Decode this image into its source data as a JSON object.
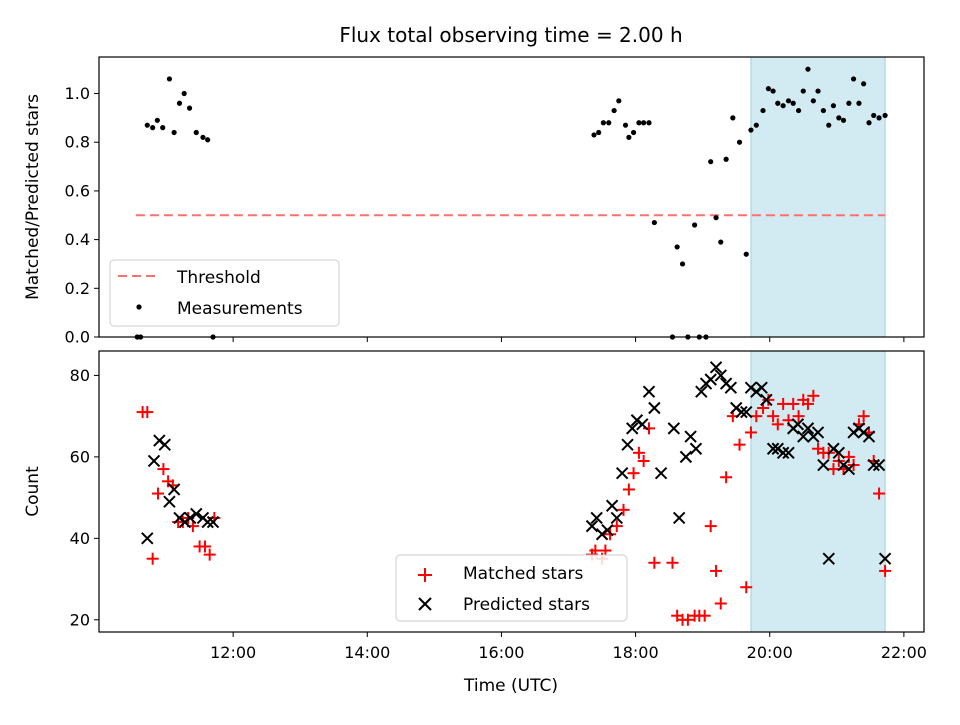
{
  "chart_data": {
    "title": "Flux total observing time = 2.00 h",
    "xlabel": "Time (UTC)",
    "x_unit": "hours UTC",
    "xlim": [
      10.0,
      22.3
    ],
    "x_ticks": [
      {
        "value": 12,
        "label": "12:00"
      },
      {
        "value": 14,
        "label": "14:00"
      },
      {
        "value": 16,
        "label": "16:00"
      },
      {
        "value": 18,
        "label": "18:00"
      },
      {
        "value": 20,
        "label": "20:00"
      },
      {
        "value": 22,
        "label": "22:00"
      }
    ],
    "highlight_span": {
      "x": [
        19.72,
        21.72
      ],
      "color": "#add8e6"
    },
    "panels": [
      {
        "type": "scatter",
        "ylabel": "Matched/Predicted stars",
        "ylim": [
          0,
          1.15
        ],
        "y_ticks": [
          0.0,
          0.2,
          0.4,
          0.6,
          0.8,
          1.0
        ],
        "legend": "lower-left",
        "threshold": {
          "name": "Threshold",
          "value": 0.5,
          "x_range": [
            10.55,
            21.72
          ],
          "color": "#ff7070"
        },
        "series": [
          {
            "name": "Measurements",
            "color": "#000000",
            "x": [
              10.57,
              10.62,
              10.72,
              10.8,
              10.87,
              10.95,
              11.05,
              11.12,
              11.2,
              11.27,
              11.35,
              11.45,
              11.55,
              11.62,
              11.7,
              17.38,
              17.45,
              17.52,
              17.6,
              17.68,
              17.75,
              17.85,
              17.9,
              17.97,
              18.05,
              18.12,
              18.2,
              18.28,
              18.55,
              18.62,
              18.7,
              18.78,
              18.88,
              18.95,
              19.05,
              19.12,
              19.2,
              19.27,
              19.35,
              19.45,
              19.55,
              19.65,
              19.72,
              19.8,
              19.9,
              19.98,
              20.05,
              20.12,
              20.2,
              20.28,
              20.35,
              20.43,
              20.5,
              20.57,
              20.65,
              20.72,
              20.8,
              20.88,
              20.95,
              21.03,
              21.1,
              21.18,
              21.25,
              21.33,
              21.4,
              21.48,
              21.55,
              21.63,
              21.72
            ],
            "y": [
              0.0,
              0.0,
              0.87,
              0.86,
              0.89,
              0.86,
              1.06,
              0.84,
              0.96,
              1.0,
              0.94,
              0.84,
              0.82,
              0.81,
              0.0,
              0.83,
              0.84,
              0.88,
              0.88,
              0.93,
              0.97,
              0.87,
              0.82,
              0.84,
              0.88,
              0.88,
              0.88,
              0.47,
              0.0,
              0.37,
              0.3,
              0.0,
              0.46,
              0.0,
              0.0,
              0.72,
              0.49,
              0.39,
              0.73,
              0.9,
              0.8,
              0.34,
              0.85,
              0.87,
              0.93,
              1.02,
              1.01,
              0.96,
              0.95,
              0.97,
              0.96,
              0.93,
              1.01,
              1.1,
              0.97,
              1.01,
              0.93,
              0.87,
              0.95,
              0.9,
              0.89,
              0.96,
              1.06,
              0.96,
              1.04,
              0.88,
              0.91,
              0.9,
              0.91
            ]
          }
        ]
      },
      {
        "type": "scatter",
        "ylabel": "Count",
        "ylim": [
          17,
          86
        ],
        "y_ticks": [
          20,
          40,
          60,
          80
        ],
        "legend": "lower-center",
        "series": [
          {
            "name": "Matched stars",
            "marker": "plus",
            "color": "#ff0000",
            "x": [
              10.65,
              10.72,
              10.8,
              10.88,
              10.96,
              11.03,
              11.1,
              11.18,
              11.25,
              11.33,
              11.4,
              11.5,
              11.58,
              11.65,
              11.72,
              17.35,
              17.4,
              17.5,
              17.55,
              17.62,
              17.72,
              17.82,
              17.9,
              17.97,
              18.05,
              18.12,
              18.2,
              18.28,
              18.55,
              18.62,
              18.7,
              18.78,
              18.88,
              18.95,
              19.03,
              19.12,
              19.2,
              19.27,
              19.35,
              19.45,
              19.55,
              19.65,
              19.72,
              19.8,
              19.9,
              19.98,
              20.05,
              20.12,
              20.2,
              20.28,
              20.35,
              20.43,
              20.5,
              20.57,
              20.65,
              20.72,
              20.8,
              20.88,
              20.95,
              21.03,
              21.1,
              21.18,
              21.25,
              21.33,
              21.4,
              21.48,
              21.55,
              21.63,
              21.72
            ],
            "y": [
              71,
              71,
              35,
              51,
              57,
              54,
              53,
              44,
              44,
              45,
              43,
              38,
              38,
              36,
              45,
              36,
              37,
              35,
              37,
              41,
              43,
              47,
              52,
              56,
              61,
              59,
              67,
              34,
              34,
              21,
              20,
              20,
              21,
              21,
              21,
              43,
              32,
              24,
              55,
              70,
              63,
              28,
              66,
              70,
              72,
              74,
              70,
              68,
              73,
              69,
              73,
              70,
              74,
              73,
              75,
              62,
              61,
              61,
              57,
              59,
              57,
              60,
              58,
              68,
              70,
              66,
              59,
              51,
              32
            ]
          },
          {
            "name": "Predicted stars",
            "marker": "x",
            "color": "#000000",
            "x": [
              10.72,
              10.82,
              10.9,
              10.98,
              11.05,
              11.12,
              11.2,
              11.28,
              11.36,
              11.45,
              11.55,
              11.62,
              11.7,
              17.35,
              17.42,
              17.5,
              17.58,
              17.65,
              17.72,
              17.8,
              17.88,
              17.95,
              18.02,
              18.1,
              18.2,
              18.28,
              18.38,
              18.57,
              18.65,
              18.75,
              18.82,
              18.9,
              18.98,
              19.05,
              19.12,
              19.2,
              19.27,
              19.35,
              19.42,
              19.5,
              19.58,
              19.65,
              19.72,
              19.8,
              19.88,
              19.95,
              20.05,
              20.12,
              20.2,
              20.28,
              20.35,
              20.42,
              20.5,
              20.57,
              20.65,
              20.72,
              20.8,
              20.88,
              20.95,
              21.03,
              21.1,
              21.18,
              21.25,
              21.33,
              21.4,
              21.48,
              21.55,
              21.63,
              21.72
            ],
            "y": [
              40,
              59,
              64,
              63,
              49,
              52,
              45,
              44,
              45,
              46,
              45,
              44,
              44,
              43,
              45,
              41,
              42,
              48,
              45,
              56,
              63,
              67,
              69,
              68,
              76,
              72,
              56,
              67,
              45,
              60,
              65,
              62,
              76,
              78,
              79,
              82,
              80,
              78,
              77,
              72,
              71,
              71,
              77,
              76,
              77,
              74,
              62,
              62,
              61,
              61,
              67,
              68,
              65,
              67,
              65,
              66,
              58,
              35,
              62,
              61,
              58,
              57,
              66,
              67,
              66,
              65,
              58,
              58,
              35
            ]
          }
        ]
      }
    ]
  }
}
